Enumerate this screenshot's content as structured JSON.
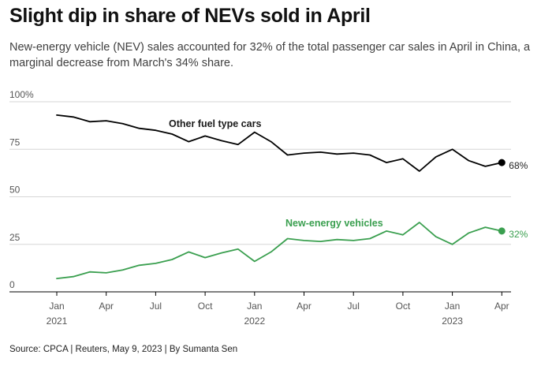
{
  "chart_data": {
    "type": "line",
    "title": "Slight dip in share of NEVs sold in April",
    "subtitle": "New-energy vehicle (NEV) sales accounted for 32% of the total passenger car sales in April in China, a marginal decrease from March's 34% share.",
    "source": "Source: CPCA | Reuters, May 9, 2023 | By Sumanta Sen",
    "x": [
      "2021-01",
      "2021-02",
      "2021-03",
      "2021-04",
      "2021-05",
      "2021-06",
      "2021-07",
      "2021-08",
      "2021-09",
      "2021-10",
      "2021-11",
      "2021-12",
      "2022-01",
      "2022-02",
      "2022-03",
      "2022-04",
      "2022-05",
      "2022-06",
      "2022-07",
      "2022-08",
      "2022-09",
      "2022-10",
      "2022-11",
      "2022-12",
      "2023-01",
      "2023-02",
      "2023-03",
      "2023-04"
    ],
    "series": [
      {
        "name": "Other fuel type cars",
        "color": "#000000",
        "values": [
          93,
          92,
          89.5,
          90,
          88.5,
          86,
          85,
          83,
          79,
          82,
          79.5,
          77.5,
          84,
          79,
          72,
          73,
          73.5,
          72.5,
          73,
          72,
          68,
          70,
          63.5,
          71,
          75,
          69,
          66,
          68
        ]
      },
      {
        "name": "New-energy vehicles",
        "color": "#3a9f4f",
        "values": [
          7,
          8,
          10.5,
          10,
          11.5,
          14,
          15,
          17,
          21,
          18,
          20.5,
          22.5,
          16,
          21,
          28,
          27,
          26.5,
          27.5,
          27,
          28,
          32,
          30,
          36.5,
          29,
          25,
          31,
          34,
          32
        ]
      }
    ],
    "y_ticks": [
      {
        "value": 0,
        "label": "0"
      },
      {
        "value": 25,
        "label": "25"
      },
      {
        "value": 50,
        "label": "50"
      },
      {
        "value": 75,
        "label": "75"
      },
      {
        "value": 100,
        "label": "100%"
      }
    ],
    "x_ticks": [
      {
        "index": 0,
        "label": "Jan",
        "year": "2021"
      },
      {
        "index": 3,
        "label": "Apr",
        "year": ""
      },
      {
        "index": 6,
        "label": "Jul",
        "year": ""
      },
      {
        "index": 9,
        "label": "Oct",
        "year": ""
      },
      {
        "index": 12,
        "label": "Jan",
        "year": "2022"
      },
      {
        "index": 15,
        "label": "Apr",
        "year": ""
      },
      {
        "index": 18,
        "label": "Jul",
        "year": ""
      },
      {
        "index": 21,
        "label": "Oct",
        "year": ""
      },
      {
        "index": 24,
        "label": "Jan",
        "year": "2023"
      },
      {
        "index": 27,
        "label": "Apr",
        "year": ""
      }
    ],
    "ylim": [
      0,
      100
    ],
    "grid": true,
    "end_labels": [
      "68%",
      "32%"
    ],
    "xlabel": "",
    "ylabel": ""
  }
}
